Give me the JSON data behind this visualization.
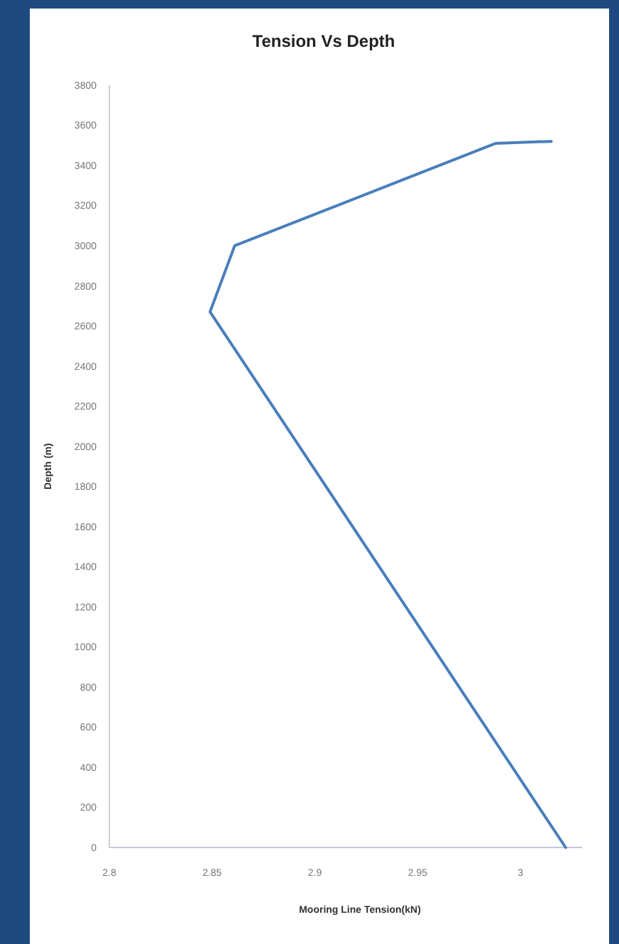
{
  "chart_data": {
    "type": "line",
    "title": "Tension Vs Depth",
    "xlabel": "Mooring Line Tension(kN)",
    "ylabel": "Depth (m)",
    "x": [
      3.022,
      2.849,
      2.861,
      2.988,
      3.015
    ],
    "series": [
      {
        "color": "#4a7ebb",
        "values": [
          0,
          2670,
          3000,
          3510,
          3520
        ]
      }
    ],
    "xlim": [
      2.8,
      3.03
    ],
    "xticks": [
      2.8,
      2.85,
      2.9,
      2.95,
      3
    ],
    "ylim": [
      0,
      3800
    ],
    "yticks": [
      0,
      200,
      400,
      600,
      800,
      1000,
      1200,
      1400,
      1600,
      1800,
      2000,
      2200,
      2400,
      2600,
      2800,
      3000,
      3200,
      3400,
      3600,
      3800
    ],
    "grid": false,
    "marker": "none",
    "line_style": "solid"
  }
}
